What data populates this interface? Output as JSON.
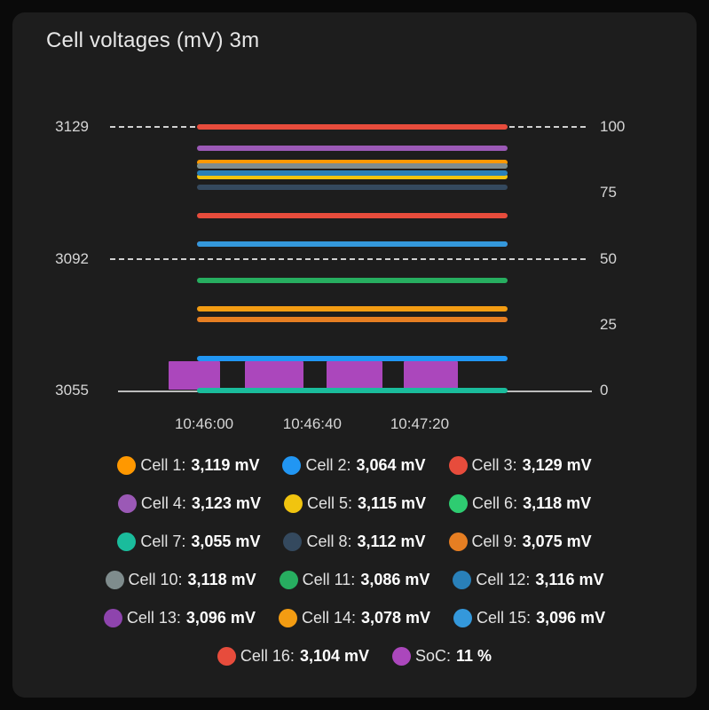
{
  "card": {
    "title": "Cell voltages (mV) 3m"
  },
  "chart_data": {
    "type": "line",
    "title": "Cell voltages (mV) 3m",
    "legend_position": "bottom",
    "grid": "horizontal dashed gridlines on dark background",
    "x_ticks": [
      "10:46:00",
      "10:46:40",
      "10:47:20"
    ],
    "left_axis": {
      "unit": "mV",
      "min": 3055,
      "max": 3129,
      "ticks": [
        3129,
        3092,
        3055
      ],
      "gridline_ticks": [
        3129,
        3092
      ]
    },
    "right_axis": {
      "unit": "%",
      "min": 0,
      "max": 100,
      "ticks": [
        100,
        75,
        50,
        25,
        0
      ]
    },
    "series": [
      {
        "name": "Cell 1",
        "value": 3119,
        "display_value": "3,119 mV",
        "color": "#ff9800",
        "axis": "left",
        "style": "line"
      },
      {
        "name": "Cell 2",
        "value": 3064,
        "display_value": "3,064 mV",
        "color": "#2196f3",
        "axis": "left",
        "style": "line"
      },
      {
        "name": "Cell 3",
        "value": 3129,
        "display_value": "3,129 mV",
        "color": "#e74c3c",
        "axis": "left",
        "style": "line"
      },
      {
        "name": "Cell 4",
        "value": 3123,
        "display_value": "3,123 mV",
        "color": "#9b59b6",
        "axis": "left",
        "style": "line"
      },
      {
        "name": "Cell 5",
        "value": 3115,
        "display_value": "3,115 mV",
        "color": "#f1c40f",
        "axis": "left",
        "style": "line"
      },
      {
        "name": "Cell 6",
        "value": 3118,
        "display_value": "3,118 mV",
        "color": "#2ecc71",
        "axis": "left",
        "style": "line"
      },
      {
        "name": "Cell 7",
        "value": 3055,
        "display_value": "3,055 mV",
        "color": "#1abc9c",
        "axis": "left",
        "style": "line"
      },
      {
        "name": "Cell 8",
        "value": 3112,
        "display_value": "3,112 mV",
        "color": "#34495e",
        "axis": "left",
        "style": "line"
      },
      {
        "name": "Cell 9",
        "value": 3075,
        "display_value": "3,075 mV",
        "color": "#e67e22",
        "axis": "left",
        "style": "line"
      },
      {
        "name": "Cell 10",
        "value": 3118,
        "display_value": "3,118 mV",
        "color": "#7f8c8d",
        "axis": "left",
        "style": "line"
      },
      {
        "name": "Cell 11",
        "value": 3086,
        "display_value": "3,086 mV",
        "color": "#27ae60",
        "axis": "left",
        "style": "line"
      },
      {
        "name": "Cell 12",
        "value": 3116,
        "display_value": "3,116 mV",
        "color": "#2980b9",
        "axis": "left",
        "style": "line"
      },
      {
        "name": "Cell 13",
        "value": 3096,
        "display_value": "3,096 mV",
        "color": "#8e44ad",
        "axis": "left",
        "style": "line"
      },
      {
        "name": "Cell 14",
        "value": 3078,
        "display_value": "3,078 mV",
        "color": "#f39c12",
        "axis": "left",
        "style": "line"
      },
      {
        "name": "Cell 15",
        "value": 3096,
        "display_value": "3,096 mV",
        "color": "#3498db",
        "axis": "left",
        "style": "line"
      },
      {
        "name": "Cell 16",
        "value": 3104,
        "display_value": "3,104 mV",
        "color": "#e74c3c",
        "axis": "left",
        "style": "line"
      },
      {
        "name": "SoC",
        "value": 11,
        "display_value": "11 %",
        "color": "#ab47bc",
        "axis": "right",
        "style": "bars"
      }
    ]
  }
}
